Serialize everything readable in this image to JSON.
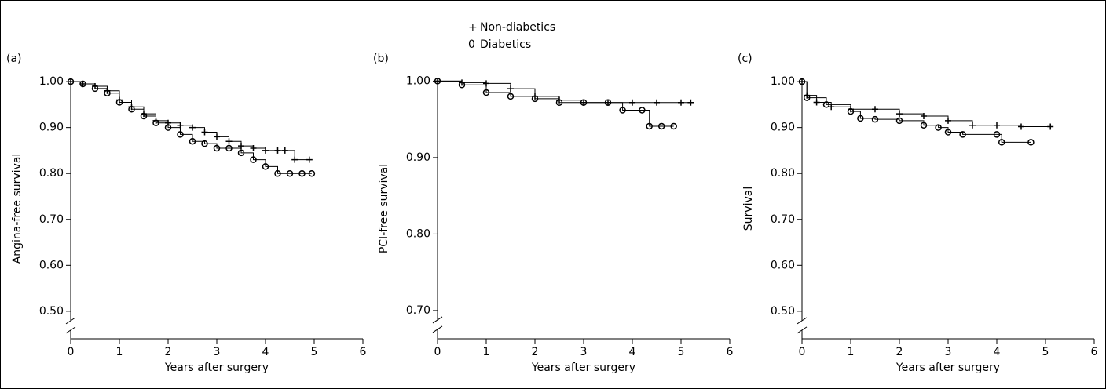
{
  "legend": [
    {
      "symbol": "+",
      "label": "Non-diabetics"
    },
    {
      "symbol": "0",
      "label": "Diabetics"
    }
  ],
  "chart_data": [
    {
      "type": "line",
      "panel_label": "(a)",
      "ylabel": "Angina-free survival",
      "xlabel": "Years after surgery",
      "xlim": [
        0,
        6
      ],
      "xticks": [
        0,
        1,
        2,
        3,
        4,
        5,
        6
      ],
      "ylim": [
        0.44,
        1.007
      ],
      "yticks": [
        {
          "value": 0.5,
          "label": "0.50"
        },
        {
          "value": 0.6,
          "label": "0.60"
        },
        {
          "value": 0.7,
          "label": "0.70"
        },
        {
          "value": 0.8,
          "label": "0.80"
        },
        {
          "value": 0.9,
          "label": "0.90"
        },
        {
          "value": 1.0,
          "label": "1.00"
        }
      ],
      "series": [
        {
          "marker": "+",
          "color": "#000000",
          "x": [
            0,
            0.25,
            0.5,
            0.75,
            1,
            1.25,
            1.5,
            1.75,
            2,
            2.25,
            2.5,
            2.75,
            3,
            3.25,
            3.5,
            3.75,
            4,
            4.25,
            4.4,
            4.6,
            4.9
          ],
          "values": [
            1.0,
            0.995,
            0.99,
            0.98,
            0.96,
            0.945,
            0.93,
            0.915,
            0.91,
            0.905,
            0.9,
            0.89,
            0.88,
            0.87,
            0.86,
            0.855,
            0.85,
            0.85,
            0.85,
            0.83,
            0.83
          ]
        },
        {
          "marker": "o",
          "color": "#000000",
          "x": [
            0,
            0.25,
            0.5,
            0.75,
            1,
            1.25,
            1.5,
            1.75,
            2,
            2.25,
            2.5,
            2.75,
            3,
            3.25,
            3.5,
            3.75,
            4,
            4.25,
            4.5,
            4.75,
            4.95
          ],
          "values": [
            1.0,
            0.995,
            0.985,
            0.975,
            0.955,
            0.94,
            0.925,
            0.91,
            0.9,
            0.885,
            0.87,
            0.865,
            0.855,
            0.855,
            0.845,
            0.83,
            0.815,
            0.8,
            0.8,
            0.8,
            0.8
          ]
        }
      ]
    },
    {
      "type": "line",
      "panel_label": "(b)",
      "ylabel": "PCI-free survival",
      "xlabel": "Years after surgery",
      "xlim": [
        0,
        6
      ],
      "xticks": [
        0,
        1,
        2,
        3,
        4,
        5,
        6
      ],
      "ylim": [
        0.663,
        1.0035
      ],
      "yticks": [
        {
          "value": 0.7,
          "label": "0.70"
        },
        {
          "value": 0.8,
          "label": "0.80"
        },
        {
          "value": 0.9,
          "label": "0.90"
        },
        {
          "value": 1.0,
          "label": "1.00"
        }
      ],
      "series": [
        {
          "marker": "+",
          "color": "#000000",
          "x": [
            0,
            0.5,
            1,
            1.5,
            2,
            2.5,
            3,
            3.5,
            4,
            4.5,
            5,
            5.2
          ],
          "values": [
            1.0,
            0.998,
            0.997,
            0.99,
            0.98,
            0.975,
            0.972,
            0.972,
            0.972,
            0.972,
            0.972,
            0.972
          ]
        },
        {
          "marker": "o",
          "color": "#000000",
          "x": [
            0,
            0.5,
            1,
            1.5,
            2,
            2.5,
            3,
            3.5,
            3.8,
            4.2,
            4.35,
            4.6,
            4.85
          ],
          "values": [
            1.0,
            0.995,
            0.985,
            0.98,
            0.977,
            0.972,
            0.972,
            0.972,
            0.962,
            0.962,
            0.941,
            0.941,
            0.941
          ]
        }
      ]
    },
    {
      "type": "line",
      "panel_label": "(c)",
      "ylabel": "Survival",
      "xlabel": "Years after surgery",
      "xlim": [
        0,
        6
      ],
      "xticks": [
        0,
        1,
        2,
        3,
        4,
        5,
        6
      ],
      "ylim": [
        0.44,
        1.007
      ],
      "yticks": [
        {
          "value": 0.5,
          "label": "0.50"
        },
        {
          "value": 0.6,
          "label": "0.60"
        },
        {
          "value": 0.7,
          "label": "0.70"
        },
        {
          "value": 0.8,
          "label": "0.80"
        },
        {
          "value": 0.9,
          "label": "0.90"
        },
        {
          "value": 1.0,
          "label": "1.00"
        }
      ],
      "series": [
        {
          "marker": "+",
          "color": "#000000",
          "x": [
            0,
            0.1,
            0.3,
            0.6,
            1,
            1.5,
            2,
            2.5,
            3,
            3.5,
            4,
            4.5,
            5.1
          ],
          "values": [
            1.0,
            0.97,
            0.955,
            0.945,
            0.94,
            0.94,
            0.93,
            0.925,
            0.915,
            0.905,
            0.905,
            0.902,
            0.902
          ]
        },
        {
          "marker": "o",
          "color": "#000000",
          "x": [
            0,
            0.1,
            0.5,
            1,
            1.2,
            1.5,
            2,
            2.5,
            2.8,
            3,
            3.3,
            4,
            4.1,
            4.7
          ],
          "values": [
            1.0,
            0.965,
            0.95,
            0.935,
            0.92,
            0.918,
            0.915,
            0.905,
            0.9,
            0.89,
            0.885,
            0.885,
            0.868,
            0.868
          ]
        }
      ]
    }
  ]
}
